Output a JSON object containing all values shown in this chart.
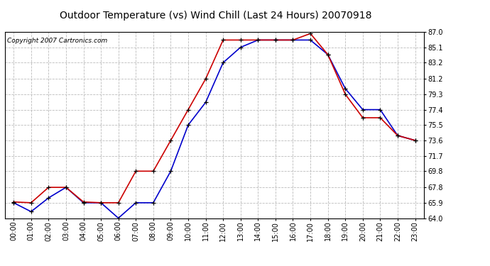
{
  "title": "Outdoor Temperature (vs) Wind Chill (Last 24 Hours) 20070918",
  "copyright": "Copyright 2007 Cartronics.com",
  "hours": [
    "00:00",
    "01:00",
    "02:00",
    "03:00",
    "04:00",
    "05:00",
    "06:00",
    "07:00",
    "08:00",
    "09:00",
    "10:00",
    "11:00",
    "12:00",
    "13:00",
    "14:00",
    "15:00",
    "16:00",
    "17:00",
    "18:00",
    "19:00",
    "20:00",
    "21:00",
    "22:00",
    "23:00"
  ],
  "temp": [
    66.0,
    65.9,
    67.8,
    67.8,
    66.0,
    65.9,
    65.9,
    69.8,
    69.8,
    73.6,
    77.4,
    81.2,
    86.0,
    86.0,
    86.0,
    86.0,
    86.0,
    86.8,
    84.2,
    79.3,
    76.4,
    76.4,
    74.2,
    73.6
  ],
  "wind_chill": [
    65.9,
    64.8,
    66.5,
    67.8,
    65.9,
    65.9,
    64.0,
    65.9,
    65.9,
    69.8,
    75.5,
    78.3,
    83.2,
    85.1,
    86.0,
    86.0,
    86.0,
    86.0,
    84.2,
    80.0,
    77.4,
    77.4,
    74.2,
    73.6
  ],
  "ylim": [
    64.0,
    87.0
  ],
  "yticks": [
    64.0,
    65.9,
    67.8,
    69.8,
    71.7,
    73.6,
    75.5,
    77.4,
    79.3,
    81.2,
    83.2,
    85.1,
    87.0
  ],
  "temp_color": "#cc0000",
  "wind_chill_color": "#0000cc",
  "bg_color": "#ffffff",
  "plot_bg_color": "#ffffff",
  "grid_color": "#bbbbbb",
  "marker": "+",
  "marker_color": "#000000",
  "title_fontsize": 10,
  "copyright_fontsize": 6.5
}
